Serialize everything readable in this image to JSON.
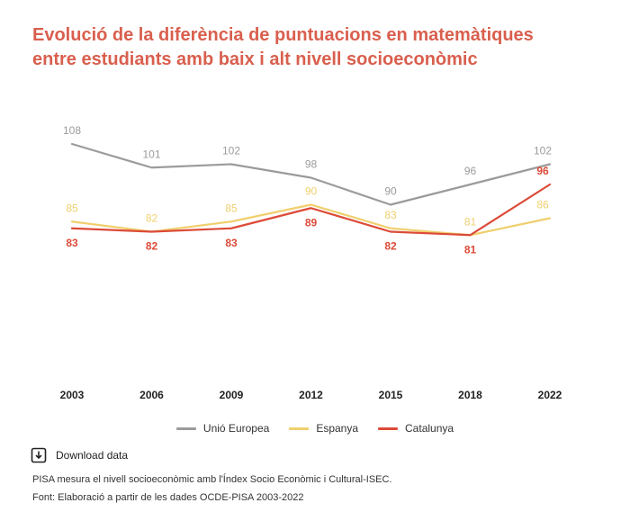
{
  "title_lines": [
    "Evolució de la diferència de puntuacions en matemàtiques",
    "entre estudiants amb baix i alt nivell socioeconòmic"
  ],
  "colors": {
    "title": "#d95f4e",
    "ue": "#9b9b9b",
    "espanya": "#f0cf6e",
    "catalunya": "#dc4a38"
  },
  "chart_data": {
    "type": "line",
    "categories": [
      "2003",
      "2006",
      "2009",
      "2012",
      "2015",
      "2018",
      "2022"
    ],
    "series": [
      {
        "name": "Unió Europea",
        "values": [
          108,
          101,
          102,
          98,
          90,
          96,
          102
        ],
        "color": "#9b9b9b",
        "label_position": "above"
      },
      {
        "name": "Espanya",
        "values": [
          85,
          82,
          85,
          90,
          83,
          81,
          86
        ],
        "color": "#f0cf6e",
        "label_position": "above"
      },
      {
        "name": "Catalunya",
        "values": [
          83,
          82,
          83,
          89,
          82,
          81,
          96
        ],
        "color": "#dc4a38",
        "label_position": "below",
        "last_label_position": "above"
      }
    ],
    "ylim": [
      50,
      115
    ],
    "grid": false,
    "legend_position": "bottom"
  },
  "legend": [
    {
      "label": "Unió Europea",
      "color": "#9b9b9b"
    },
    {
      "label": "Espanya",
      "color": "#f0cf6e"
    },
    {
      "label": "Catalunya",
      "color": "#dc4a38"
    }
  ],
  "download_label": "Download data",
  "notes": [
    "PISA mesura el nivell socioeconòmic amb l'Índex Socio Econòmic i Cultural-ISEC.",
    "Font: Elaboració a partir de les dades OCDE-PISA 2003-2022"
  ]
}
